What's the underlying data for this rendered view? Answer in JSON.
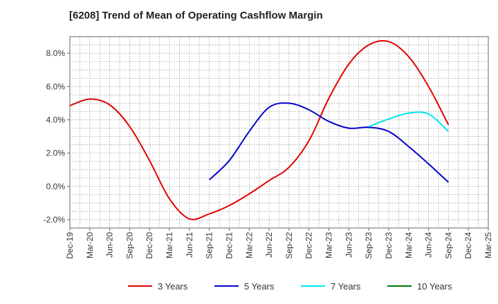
{
  "chart_data": {
    "type": "line",
    "title": "[6208]  Trend of Mean of Operating Cashflow Margin",
    "xlabel": "",
    "ylabel": "",
    "x": [
      "Dec-19",
      "Mar-20",
      "Jun-20",
      "Sep-20",
      "Dec-20",
      "Mar-21",
      "Jun-21",
      "Sep-21",
      "Dec-21",
      "Mar-22",
      "Jun-22",
      "Sep-22",
      "Dec-22",
      "Mar-23",
      "Jun-23",
      "Sep-23",
      "Dec-23",
      "Mar-24",
      "Jun-24",
      "Sep-24",
      "Dec-24",
      "Mar-25"
    ],
    "yticks": [
      "-2.0%",
      "0.0%",
      "2.0%",
      "4.0%",
      "6.0%",
      "8.0%"
    ],
    "ylim": [
      -2.5,
      9.0
    ],
    "grid": true,
    "legend_position": "bottom",
    "series": [
      {
        "name": "3 Years",
        "color": "#e00000",
        "values": [
          4.85,
          5.25,
          4.9,
          3.6,
          1.55,
          -0.75,
          -1.95,
          -1.65,
          -1.15,
          -0.45,
          0.35,
          1.15,
          2.75,
          5.3,
          7.35,
          8.5,
          8.7,
          7.8,
          6.0,
          3.7,
          null,
          null
        ]
      },
      {
        "name": "5 Years",
        "color": "#0000cc",
        "values": [
          null,
          null,
          null,
          null,
          null,
          null,
          null,
          0.4,
          1.55,
          3.3,
          4.75,
          5.0,
          4.6,
          3.9,
          3.5,
          3.55,
          3.3,
          2.4,
          1.35,
          0.25,
          null,
          null
        ]
      },
      {
        "name": "7 Years",
        "color": "#00e5ee",
        "values": [
          null,
          null,
          null,
          null,
          null,
          null,
          null,
          null,
          null,
          null,
          null,
          null,
          null,
          null,
          null,
          3.6,
          4.05,
          4.4,
          4.35,
          3.3,
          null,
          null
        ]
      },
      {
        "name": "10 Years",
        "color": "#007700",
        "values": [
          null,
          null,
          null,
          null,
          null,
          null,
          null,
          null,
          null,
          null,
          null,
          null,
          null,
          null,
          null,
          null,
          null,
          null,
          null,
          null,
          null,
          null
        ]
      }
    ]
  }
}
